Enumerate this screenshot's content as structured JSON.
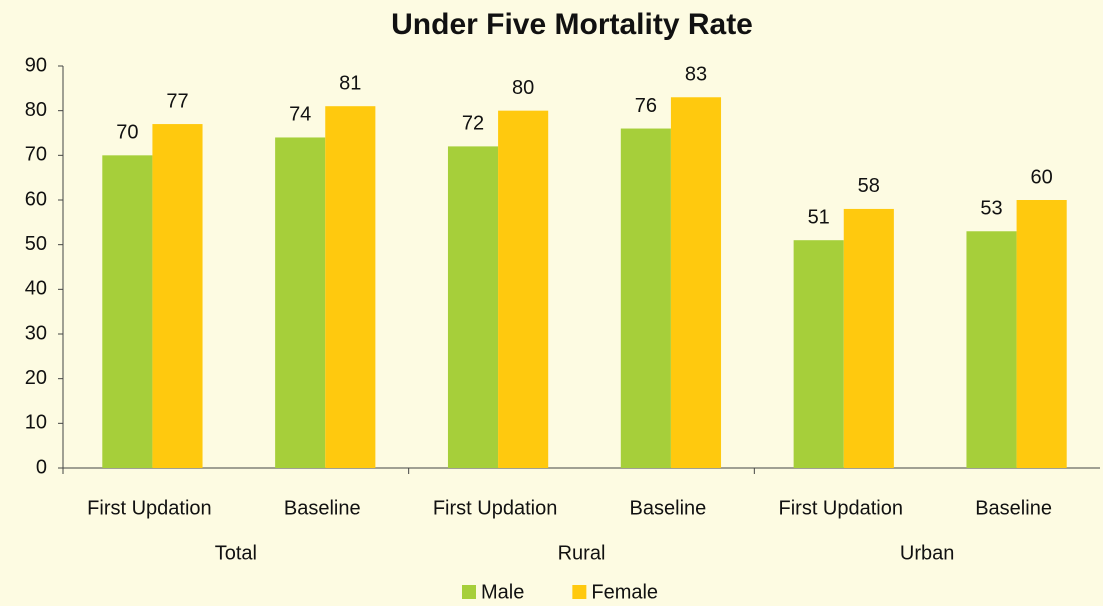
{
  "chart_data": {
    "type": "bar",
    "title": "Under Five Mortality Rate",
    "categories": [
      "First Updation",
      "Baseline",
      "First Updation",
      "Baseline",
      "First Updation",
      "Baseline"
    ],
    "groups": [
      "Total",
      "Rural",
      "Urban"
    ],
    "series": [
      {
        "name": "Male",
        "color": "#a6cf3a",
        "values": [
          70,
          74,
          72,
          76,
          51,
          53
        ]
      },
      {
        "name": "Female",
        "color": "#ffc90e",
        "values": [
          77,
          81,
          80,
          83,
          58,
          60
        ]
      }
    ],
    "ylim": [
      0,
      90
    ],
    "yticks": [
      0,
      10,
      20,
      30,
      40,
      50,
      60,
      70,
      80,
      90
    ],
    "grid": false,
    "legend": "bottom"
  }
}
